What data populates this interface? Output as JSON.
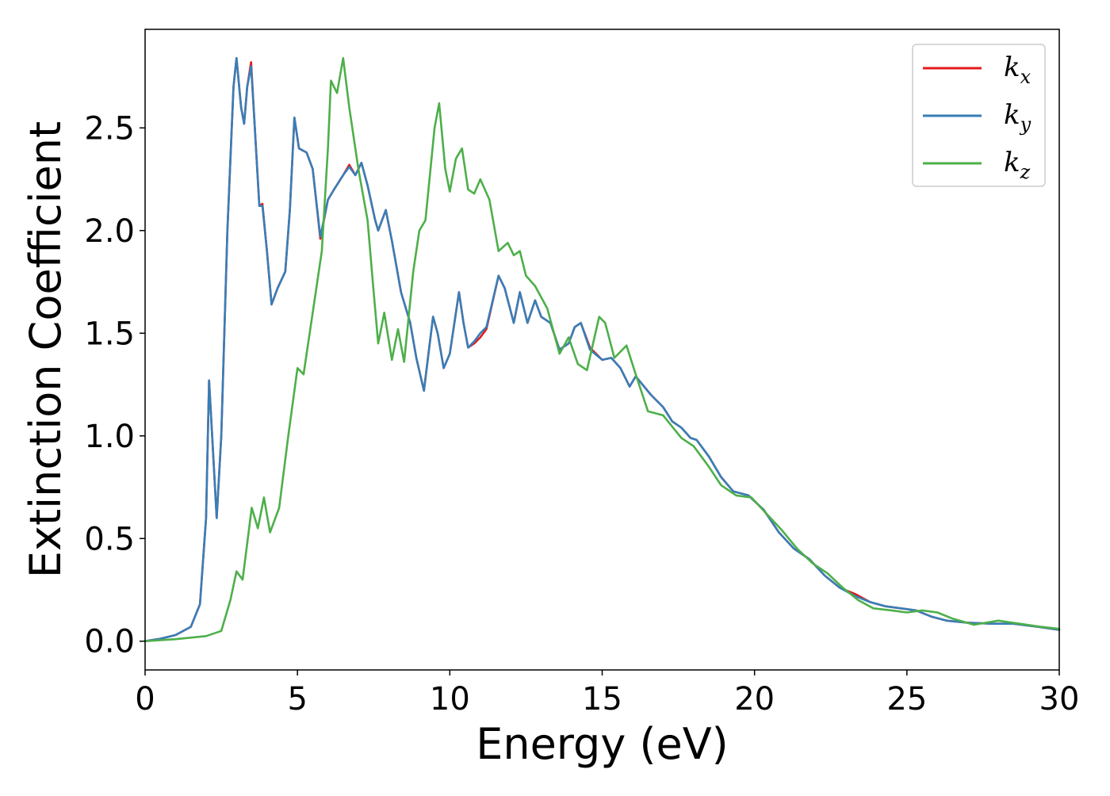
{
  "chart_data": {
    "type": "line",
    "xlabel": "Energy (eV)",
    "ylabel": "Extinction Coefficient",
    "xlim": [
      0,
      30
    ],
    "ylim": [
      -0.14,
      2.98
    ],
    "xticks": [
      0,
      5,
      10,
      15,
      20,
      25,
      30
    ],
    "xtick_labels": [
      "0",
      "5",
      "10",
      "15",
      "20",
      "25",
      "30"
    ],
    "yticks": [
      0.0,
      0.5,
      1.0,
      1.5,
      2.0,
      2.5
    ],
    "ytick_labels": [
      "0.0",
      "0.5",
      "1.0",
      "1.5",
      "2.0",
      "2.5"
    ],
    "grid": false,
    "legend_position": "top-right",
    "series": [
      {
        "name": "k_x",
        "label_main": "k",
        "label_sub": "x",
        "color": "#e41a1c",
        "points": [
          [
            0,
            0
          ],
          [
            0.5,
            0.012
          ],
          [
            1.0,
            0.03
          ],
          [
            1.5,
            0.07
          ],
          [
            1.8,
            0.18
          ],
          [
            2.0,
            0.6
          ],
          [
            2.1,
            1.27
          ],
          [
            2.2,
            1.0
          ],
          [
            2.35,
            0.6
          ],
          [
            2.5,
            1.0
          ],
          [
            2.7,
            2.0
          ],
          [
            2.9,
            2.7
          ],
          [
            3.0,
            2.84
          ],
          [
            3.15,
            2.6
          ],
          [
            3.25,
            2.52
          ],
          [
            3.35,
            2.7
          ],
          [
            3.48,
            2.82
          ],
          [
            3.6,
            2.5
          ],
          [
            3.75,
            2.12
          ],
          [
            3.85,
            2.13
          ],
          [
            4.0,
            1.9
          ],
          [
            4.15,
            1.64
          ],
          [
            4.35,
            1.72
          ],
          [
            4.6,
            1.8
          ],
          [
            4.75,
            2.1
          ],
          [
            4.9,
            2.55
          ],
          [
            5.05,
            2.4
          ],
          [
            5.3,
            2.38
          ],
          [
            5.5,
            2.3
          ],
          [
            5.75,
            1.96
          ],
          [
            6.0,
            2.15
          ],
          [
            6.2,
            2.2
          ],
          [
            6.5,
            2.27
          ],
          [
            6.7,
            2.32
          ],
          [
            6.9,
            2.27
          ],
          [
            7.1,
            2.33
          ],
          [
            7.3,
            2.22
          ],
          [
            7.55,
            2.05
          ],
          [
            7.65,
            2.0
          ],
          [
            7.9,
            2.1
          ],
          [
            8.1,
            1.95
          ],
          [
            8.4,
            1.7
          ],
          [
            8.7,
            1.55
          ],
          [
            8.9,
            1.38
          ],
          [
            9.15,
            1.22
          ],
          [
            9.3,
            1.4
          ],
          [
            9.45,
            1.58
          ],
          [
            9.6,
            1.5
          ],
          [
            9.8,
            1.33
          ],
          [
            10.0,
            1.4
          ],
          [
            10.3,
            1.7
          ],
          [
            10.45,
            1.55
          ],
          [
            10.6,
            1.43
          ],
          [
            10.8,
            1.45
          ],
          [
            11.0,
            1.48
          ],
          [
            11.2,
            1.52
          ],
          [
            11.6,
            1.78
          ],
          [
            11.8,
            1.72
          ],
          [
            12.1,
            1.55
          ],
          [
            12.3,
            1.7
          ],
          [
            12.55,
            1.55
          ],
          [
            12.8,
            1.66
          ],
          [
            13.0,
            1.58
          ],
          [
            13.3,
            1.55
          ],
          [
            13.6,
            1.42
          ],
          [
            13.9,
            1.45
          ],
          [
            14.1,
            1.53
          ],
          [
            14.3,
            1.55
          ],
          [
            14.6,
            1.43
          ],
          [
            15.0,
            1.37
          ],
          [
            15.3,
            1.38
          ],
          [
            15.6,
            1.33
          ],
          [
            15.9,
            1.24
          ],
          [
            16.1,
            1.29
          ],
          [
            16.6,
            1.2
          ],
          [
            17.0,
            1.14
          ],
          [
            17.3,
            1.07
          ],
          [
            17.6,
            1.04
          ],
          [
            17.9,
            0.99
          ],
          [
            18.1,
            0.98
          ],
          [
            18.5,
            0.9
          ],
          [
            18.9,
            0.8
          ],
          [
            19.3,
            0.73
          ],
          [
            19.8,
            0.71
          ],
          [
            20.3,
            0.64
          ],
          [
            20.8,
            0.53
          ],
          [
            21.3,
            0.45
          ],
          [
            21.8,
            0.4
          ],
          [
            22.3,
            0.32
          ],
          [
            22.8,
            0.26
          ],
          [
            23.3,
            0.23
          ],
          [
            23.8,
            0.19
          ],
          [
            24.3,
            0.17
          ],
          [
            24.8,
            0.16
          ],
          [
            25.3,
            0.15
          ],
          [
            25.8,
            0.12
          ],
          [
            26.3,
            0.1
          ],
          [
            27.0,
            0.09
          ],
          [
            27.8,
            0.085
          ],
          [
            28.5,
            0.085
          ],
          [
            29.3,
            0.07
          ],
          [
            30.0,
            0.055
          ]
        ]
      },
      {
        "name": "k_y",
        "label_main": "k",
        "label_sub": "y",
        "color": "#377eb8",
        "points": [
          [
            0,
            0
          ],
          [
            0.5,
            0.012
          ],
          [
            1.0,
            0.03
          ],
          [
            1.5,
            0.07
          ],
          [
            1.8,
            0.18
          ],
          [
            2.0,
            0.6
          ],
          [
            2.1,
            1.27
          ],
          [
            2.2,
            1.0
          ],
          [
            2.35,
            0.6
          ],
          [
            2.5,
            1.0
          ],
          [
            2.7,
            2.0
          ],
          [
            2.9,
            2.7
          ],
          [
            3.0,
            2.84
          ],
          [
            3.15,
            2.6
          ],
          [
            3.25,
            2.52
          ],
          [
            3.35,
            2.7
          ],
          [
            3.48,
            2.8
          ],
          [
            3.6,
            2.5
          ],
          [
            3.75,
            2.12
          ],
          [
            3.85,
            2.12
          ],
          [
            4.0,
            1.9
          ],
          [
            4.15,
            1.64
          ],
          [
            4.35,
            1.72
          ],
          [
            4.6,
            1.8
          ],
          [
            4.75,
            2.1
          ],
          [
            4.9,
            2.55
          ],
          [
            5.05,
            2.4
          ],
          [
            5.3,
            2.38
          ],
          [
            5.5,
            2.3
          ],
          [
            5.75,
            1.97
          ],
          [
            6.0,
            2.15
          ],
          [
            6.2,
            2.2
          ],
          [
            6.5,
            2.27
          ],
          [
            6.7,
            2.31
          ],
          [
            6.9,
            2.27
          ],
          [
            7.1,
            2.33
          ],
          [
            7.3,
            2.22
          ],
          [
            7.55,
            2.05
          ],
          [
            7.65,
            2.0
          ],
          [
            7.9,
            2.1
          ],
          [
            8.1,
            1.95
          ],
          [
            8.4,
            1.7
          ],
          [
            8.7,
            1.55
          ],
          [
            8.9,
            1.38
          ],
          [
            9.15,
            1.22
          ],
          [
            9.3,
            1.4
          ],
          [
            9.45,
            1.58
          ],
          [
            9.6,
            1.5
          ],
          [
            9.8,
            1.33
          ],
          [
            10.0,
            1.4
          ],
          [
            10.3,
            1.7
          ],
          [
            10.45,
            1.55
          ],
          [
            10.6,
            1.43
          ],
          [
            10.8,
            1.46
          ],
          [
            11.0,
            1.5
          ],
          [
            11.2,
            1.53
          ],
          [
            11.6,
            1.78
          ],
          [
            11.8,
            1.72
          ],
          [
            12.1,
            1.55
          ],
          [
            12.3,
            1.7
          ],
          [
            12.55,
            1.55
          ],
          [
            12.8,
            1.66
          ],
          [
            13.0,
            1.58
          ],
          [
            13.3,
            1.55
          ],
          [
            13.6,
            1.42
          ],
          [
            13.9,
            1.45
          ],
          [
            14.1,
            1.53
          ],
          [
            14.3,
            1.55
          ],
          [
            14.6,
            1.42
          ],
          [
            15.0,
            1.37
          ],
          [
            15.3,
            1.38
          ],
          [
            15.6,
            1.33
          ],
          [
            15.9,
            1.24
          ],
          [
            16.1,
            1.29
          ],
          [
            16.6,
            1.2
          ],
          [
            17.0,
            1.14
          ],
          [
            17.3,
            1.07
          ],
          [
            17.6,
            1.04
          ],
          [
            17.9,
            0.99
          ],
          [
            18.1,
            0.98
          ],
          [
            18.5,
            0.9
          ],
          [
            18.9,
            0.8
          ],
          [
            19.3,
            0.73
          ],
          [
            19.8,
            0.71
          ],
          [
            20.3,
            0.64
          ],
          [
            20.8,
            0.53
          ],
          [
            21.3,
            0.45
          ],
          [
            21.8,
            0.4
          ],
          [
            22.3,
            0.32
          ],
          [
            22.8,
            0.26
          ],
          [
            23.3,
            0.22
          ],
          [
            23.8,
            0.19
          ],
          [
            24.3,
            0.17
          ],
          [
            24.8,
            0.16
          ],
          [
            25.3,
            0.15
          ],
          [
            25.8,
            0.12
          ],
          [
            26.3,
            0.1
          ],
          [
            27.0,
            0.09
          ],
          [
            27.8,
            0.085
          ],
          [
            28.5,
            0.085
          ],
          [
            29.3,
            0.07
          ],
          [
            30.0,
            0.055
          ]
        ]
      },
      {
        "name": "k_z",
        "label_main": "k",
        "label_sub": "z",
        "color": "#4daf4a",
        "points": [
          [
            0,
            0
          ],
          [
            1.0,
            0.01
          ],
          [
            2.0,
            0.025
          ],
          [
            2.5,
            0.05
          ],
          [
            2.8,
            0.2
          ],
          [
            3.0,
            0.34
          ],
          [
            3.2,
            0.3
          ],
          [
            3.5,
            0.65
          ],
          [
            3.7,
            0.55
          ],
          [
            3.9,
            0.7
          ],
          [
            4.1,
            0.53
          ],
          [
            4.4,
            0.65
          ],
          [
            4.7,
            1.0
          ],
          [
            5.0,
            1.33
          ],
          [
            5.2,
            1.3
          ],
          [
            5.5,
            1.6
          ],
          [
            5.8,
            1.9
          ],
          [
            6.0,
            2.4
          ],
          [
            6.1,
            2.73
          ],
          [
            6.3,
            2.67
          ],
          [
            6.5,
            2.84
          ],
          [
            6.7,
            2.6
          ],
          [
            7.0,
            2.3
          ],
          [
            7.3,
            2.05
          ],
          [
            7.5,
            1.7
          ],
          [
            7.65,
            1.45
          ],
          [
            7.85,
            1.6
          ],
          [
            8.1,
            1.37
          ],
          [
            8.3,
            1.52
          ],
          [
            8.5,
            1.36
          ],
          [
            8.8,
            1.8
          ],
          [
            9.0,
            2.0
          ],
          [
            9.2,
            2.05
          ],
          [
            9.5,
            2.5
          ],
          [
            9.65,
            2.62
          ],
          [
            9.85,
            2.3
          ],
          [
            10.0,
            2.19
          ],
          [
            10.2,
            2.35
          ],
          [
            10.4,
            2.4
          ],
          [
            10.6,
            2.2
          ],
          [
            10.8,
            2.18
          ],
          [
            11.0,
            2.25
          ],
          [
            11.3,
            2.15
          ],
          [
            11.6,
            1.9
          ],
          [
            11.9,
            1.94
          ],
          [
            12.1,
            1.88
          ],
          [
            12.3,
            1.9
          ],
          [
            12.5,
            1.78
          ],
          [
            12.8,
            1.73
          ],
          [
            13.2,
            1.62
          ],
          [
            13.6,
            1.4
          ],
          [
            13.9,
            1.48
          ],
          [
            14.2,
            1.35
          ],
          [
            14.5,
            1.32
          ],
          [
            14.9,
            1.58
          ],
          [
            15.1,
            1.55
          ],
          [
            15.4,
            1.38
          ],
          [
            15.8,
            1.44
          ],
          [
            16.1,
            1.3
          ],
          [
            16.5,
            1.12
          ],
          [
            17.0,
            1.1
          ],
          [
            17.6,
            0.99
          ],
          [
            18.0,
            0.95
          ],
          [
            18.5,
            0.85
          ],
          [
            18.9,
            0.76
          ],
          [
            19.4,
            0.71
          ],
          [
            19.9,
            0.7
          ],
          [
            20.4,
            0.62
          ],
          [
            20.9,
            0.54
          ],
          [
            21.4,
            0.45
          ],
          [
            21.9,
            0.38
          ],
          [
            22.4,
            0.33
          ],
          [
            22.9,
            0.26
          ],
          [
            23.4,
            0.2
          ],
          [
            23.9,
            0.16
          ],
          [
            24.5,
            0.15
          ],
          [
            25.0,
            0.14
          ],
          [
            25.5,
            0.15
          ],
          [
            26.0,
            0.14
          ],
          [
            26.5,
            0.11
          ],
          [
            27.2,
            0.08
          ],
          [
            28.0,
            0.1
          ],
          [
            28.7,
            0.085
          ],
          [
            29.4,
            0.07
          ],
          [
            30.0,
            0.06
          ]
        ]
      }
    ]
  }
}
